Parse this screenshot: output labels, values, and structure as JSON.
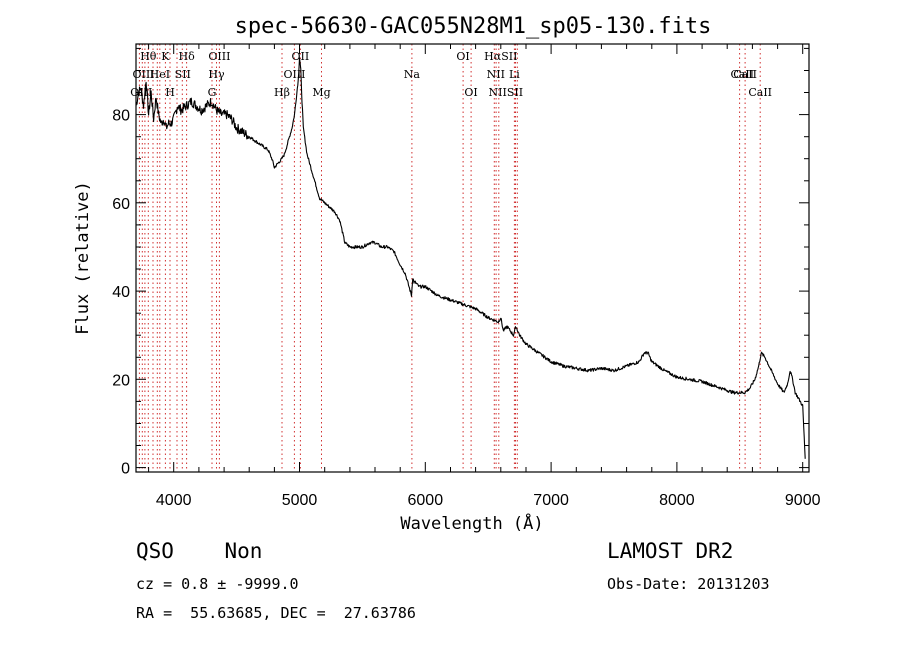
{
  "chart_data": {
    "type": "line",
    "title": "spec-56630-GAC055N28M1_sp05-130.fits",
    "xlabel": "Wavelength (Å)",
    "ylabel": "Flux (relative)",
    "xlim": [
      3700,
      9050
    ],
    "ylim": [
      -1,
      96
    ],
    "xticks": [
      4000,
      5000,
      6000,
      7000,
      8000,
      9000
    ],
    "yticks": [
      0,
      20,
      40,
      60,
      80
    ],
    "grid": false,
    "series": [
      {
        "x": [
          3700,
          3720,
          3740,
          3760,
          3780,
          3800,
          3820,
          3840,
          3860,
          3880,
          3900,
          3920,
          3940,
          3960,
          3980,
          4000,
          4030,
          4060,
          4100,
          4140,
          4180,
          4220,
          4260,
          4300,
          4340,
          4380,
          4420,
          4460,
          4500,
          4550,
          4600,
          4650,
          4700,
          4750,
          4780,
          4800,
          4830,
          4860,
          4880,
          4900,
          4920,
          4940,
          4960,
          4975,
          4990,
          5000,
          5010,
          5020,
          5030,
          5060,
          5100,
          5130,
          5160,
          5200,
          5240,
          5280,
          5320,
          5360,
          5400,
          5450,
          5500,
          5560,
          5600,
          5650,
          5700,
          5750,
          5800,
          5840,
          5870,
          5890,
          5900,
          5910,
          5920,
          5950,
          6000,
          6100,
          6200,
          6300,
          6400,
          6500,
          6580,
          6600,
          6620,
          6650,
          6700,
          6720,
          6750,
          6800,
          6900,
          7000,
          7100,
          7200,
          7300,
          7400,
          7500,
          7600,
          7700,
          7740,
          7770,
          7800,
          7850,
          7900,
          8000,
          8100,
          8200,
          8300,
          8400,
          8450,
          8500,
          8540,
          8580,
          8620,
          8650,
          8670,
          8700,
          8750,
          8800,
          8850,
          8880,
          8900,
          8920,
          8940,
          8960,
          8980,
          9000,
          9020
        ],
        "y": [
          82,
          85,
          86,
          82,
          88,
          80,
          85,
          79,
          84,
          80,
          78,
          79,
          77,
          78,
          78,
          79,
          82,
          81,
          82,
          83,
          82,
          81,
          82,
          83,
          81,
          80,
          80,
          79,
          77,
          76,
          75,
          74,
          73,
          72,
          70,
          68,
          69,
          70,
          71,
          73,
          75,
          77,
          80,
          84,
          88,
          93,
          90,
          83,
          77,
          71,
          67,
          64,
          61,
          60,
          59,
          58,
          56,
          51,
          50,
          50,
          50,
          51,
          51,
          50,
          50,
          49,
          46,
          44,
          41,
          39,
          43,
          42,
          42,
          41,
          41,
          39,
          38,
          37,
          36,
          34,
          33,
          34,
          31,
          32,
          30,
          32,
          30,
          28,
          26,
          24,
          23,
          22.5,
          22,
          22.5,
          22,
          23,
          24,
          26,
          26,
          24,
          23,
          22,
          20.5,
          20,
          19.5,
          18.5,
          17.5,
          17,
          17,
          17,
          18,
          20,
          23,
          26,
          25,
          22,
          19,
          17,
          19,
          22,
          20,
          17,
          16,
          15,
          14,
          2
        ]
      }
    ],
    "line_labels": {
      "top": [
        {
          "label": "Hθ",
          "x": 3798
        },
        {
          "label": "K",
          "x": 3934
        },
        {
          "label": "Hδ",
          "x": 4102
        },
        {
          "label": "OIII",
          "x": 4363
        },
        {
          "label": "OII",
          "x": 5007
        },
        {
          "label": "OI",
          "x": 6300
        },
        {
          "label": "HαSII",
          "x": 6600
        }
      ],
      "middle": [
        {
          "label": "OIII",
          "x": 3760
        },
        {
          "label": "HeI",
          "x": 3890
        },
        {
          "label": "SII",
          "x": 4072
        },
        {
          "label": "Hγ",
          "x": 4340
        },
        {
          "label": "OIII",
          "x": 4960
        },
        {
          "label": "Na",
          "x": 5893
        },
        {
          "label": "NII",
          "x": 6560
        },
        {
          "label": "Li",
          "x": 6708
        },
        {
          "label": "CaII",
          "x": 8542
        },
        {
          "label": "CaII",
          "x": 8520
        }
      ],
      "bottom": [
        {
          "label": "OIII",
          "x": 3742
        },
        {
          "label": "H",
          "x": 3970
        },
        {
          "label": "G",
          "x": 4304
        },
        {
          "label": "Hβ",
          "x": 4861
        },
        {
          "label": "Mg",
          "x": 5175
        },
        {
          "label": "OI",
          "x": 6364
        },
        {
          "label": "NIISII",
          "x": 6640
        },
        {
          "label": "CaII",
          "x": 8662
        }
      ]
    },
    "line_markers_x": [
      3727,
      3750,
      3771,
      3798,
      3835,
      3869,
      3889,
      3934,
      3970,
      4026,
      4068,
      4102,
      4304,
      4340,
      4363,
      4861,
      4959,
      5007,
      5175,
      5893,
      6300,
      6364,
      6548,
      6563,
      6584,
      6708,
      6717,
      6731,
      8498,
      8542,
      8662
    ]
  },
  "info": {
    "class_label": "QSO    Non",
    "cz": "cz = 0.8 ± -9999.0",
    "coords": "RA =  55.63685, DEC =  27.63786",
    "survey": "LAMOST DR2",
    "obs_date": "Obs-Date: 20131203"
  }
}
